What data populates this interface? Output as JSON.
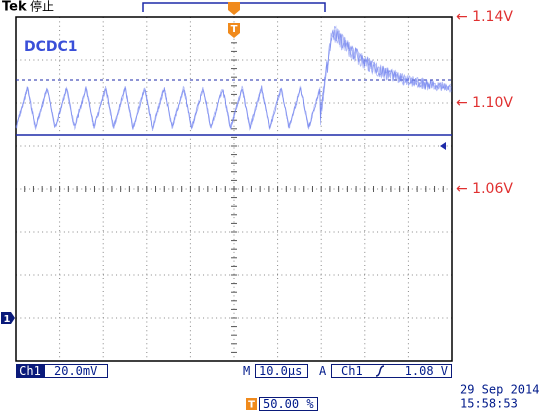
{
  "header": {
    "brand": "Tek",
    "status": "停止"
  },
  "channel_label": "DCDC1",
  "annotations": [
    "← 1.14V",
    "← 1.10V",
    "← 1.06V"
  ],
  "markers": {
    "trigger": "T",
    "channel": "1"
  },
  "status_bar": {
    "channel": "Ch1",
    "scale": "20.0mV",
    "time_label": "M",
    "time_scale": "10.0µs",
    "trigger_mode": "A",
    "trigger_channel": "Ch1",
    "trigger_level": "1.08 V",
    "date": "29 Sep  2014",
    "time": "15:58:53",
    "position_marker": "T",
    "position": "50.00 %"
  }
}
